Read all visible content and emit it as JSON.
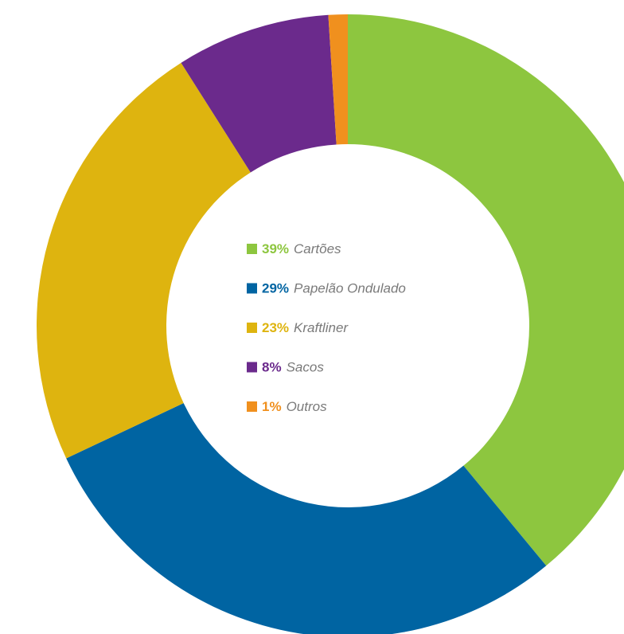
{
  "chart_data": {
    "type": "pie",
    "variant": "donut",
    "slices": [
      {
        "label": "Cartões",
        "value": 39,
        "value_label": "39%",
        "color": "#8dc63f"
      },
      {
        "label": "Papelão Ondulado",
        "value": 29,
        "value_label": "29%",
        "color": "#0064a2"
      },
      {
        "label": "Kraftliner",
        "value": 23,
        "value_label": "23%",
        "color": "#deb40f"
      },
      {
        "label": "Sacos",
        "value": 8,
        "value_label": "8%",
        "color": "#6b2a8c"
      },
      {
        "label": "Outros",
        "value": 1,
        "value_label": "1%",
        "color": "#f0901e"
      }
    ],
    "legend_position": "center"
  }
}
